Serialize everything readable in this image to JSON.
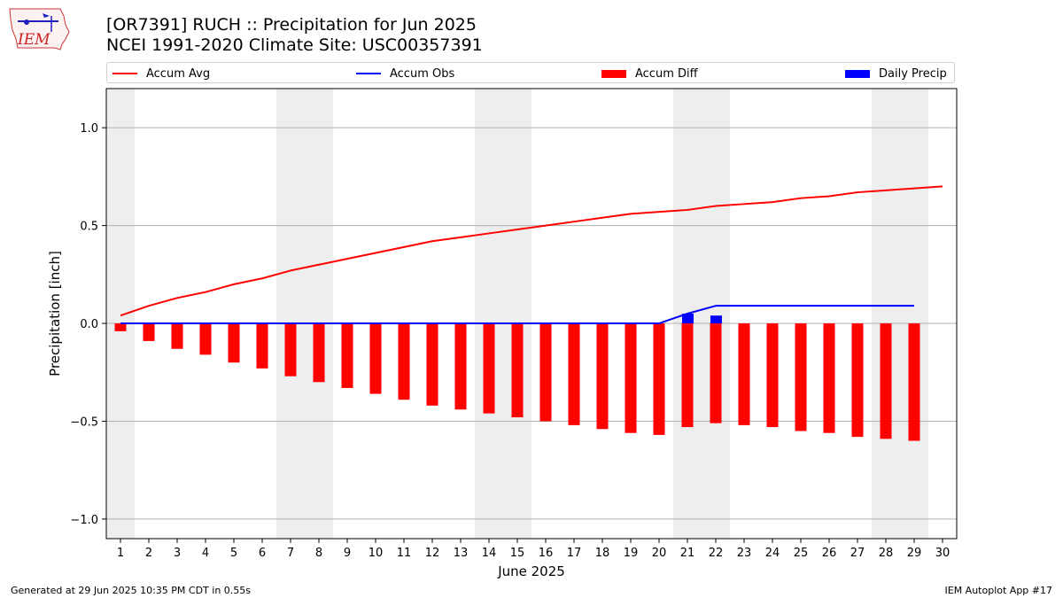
{
  "header": {
    "logo_text": "IEM",
    "title_line1": "[OR7391] RUCH :: Precipitation for Jun 2025",
    "title_line2": "NCEI 1991-2020 Climate Site: USC00357391"
  },
  "legend": {
    "accum_avg": "Accum Avg",
    "accum_obs": "Accum Obs",
    "accum_diff": "Accum Diff",
    "daily_precip": "Daily Precip"
  },
  "colors": {
    "accum_avg": "#ff0000",
    "accum_obs": "#0000ff",
    "accum_diff": "#ff0000",
    "daily_precip": "#0000ff",
    "weekend_shade": "#eeeeee",
    "grid": "#b0b0b0"
  },
  "footer": {
    "left": "Generated at 29 Jun 2025 10:35 PM CDT in 0.55s",
    "right": "IEM Autoplot App #17"
  },
  "chart_data": {
    "type": "bar",
    "xlabel": "June 2025",
    "ylabel": "Precipitation [inch]",
    "ylim": [
      -1.1,
      1.2
    ],
    "yticks": [
      -1.0,
      -0.5,
      0.0,
      0.5,
      1.0
    ],
    "ytick_labels": [
      "−1.0",
      "−0.5",
      "0.0",
      "0.5",
      "1.0"
    ],
    "xlim": [
      0.5,
      30.5
    ],
    "x": [
      1,
      2,
      3,
      4,
      5,
      6,
      7,
      8,
      9,
      10,
      11,
      12,
      13,
      14,
      15,
      16,
      17,
      18,
      19,
      20,
      21,
      22,
      23,
      24,
      25,
      26,
      27,
      28,
      29,
      30
    ],
    "grid": "horizontal",
    "weekend_shading": [
      [
        0.5,
        1.5
      ],
      [
        6.5,
        8.5
      ],
      [
        13.5,
        15.5
      ],
      [
        20.5,
        22.5
      ],
      [
        27.5,
        29.5
      ]
    ],
    "series": [
      {
        "name": "Accum Avg",
        "kind": "line",
        "x": [
          1,
          2,
          3,
          4,
          5,
          6,
          7,
          8,
          9,
          10,
          11,
          12,
          13,
          14,
          15,
          16,
          17,
          18,
          19,
          20,
          21,
          22,
          23,
          24,
          25,
          26,
          27,
          28,
          29,
          30
        ],
        "values": [
          0.04,
          0.09,
          0.13,
          0.16,
          0.2,
          0.23,
          0.27,
          0.3,
          0.33,
          0.36,
          0.39,
          0.42,
          0.44,
          0.46,
          0.48,
          0.5,
          0.52,
          0.54,
          0.56,
          0.57,
          0.58,
          0.6,
          0.61,
          0.62,
          0.64,
          0.65,
          0.67,
          0.68,
          0.69,
          0.7
        ]
      },
      {
        "name": "Accum Obs",
        "kind": "line",
        "x": [
          1,
          2,
          3,
          4,
          5,
          6,
          7,
          8,
          9,
          10,
          11,
          12,
          13,
          14,
          15,
          16,
          17,
          18,
          19,
          20,
          21,
          22,
          23,
          24,
          25,
          26,
          27,
          28,
          29
        ],
        "values": [
          0,
          0,
          0,
          0,
          0,
          0,
          0,
          0,
          0,
          0,
          0,
          0,
          0,
          0,
          0,
          0,
          0,
          0,
          0,
          0,
          0.05,
          0.09,
          0.09,
          0.09,
          0.09,
          0.09,
          0.09,
          0.09,
          0.09
        ]
      },
      {
        "name": "Accum Diff",
        "kind": "bar",
        "x": [
          1,
          2,
          3,
          4,
          5,
          6,
          7,
          8,
          9,
          10,
          11,
          12,
          13,
          14,
          15,
          16,
          17,
          18,
          19,
          20,
          21,
          22,
          23,
          24,
          25,
          26,
          27,
          28,
          29
        ],
        "values": [
          -0.04,
          -0.09,
          -0.13,
          -0.16,
          -0.2,
          -0.23,
          -0.27,
          -0.3,
          -0.33,
          -0.36,
          -0.39,
          -0.42,
          -0.44,
          -0.46,
          -0.48,
          -0.5,
          -0.52,
          -0.54,
          -0.56,
          -0.57,
          -0.53,
          -0.51,
          -0.52,
          -0.53,
          -0.55,
          -0.56,
          -0.58,
          -0.59,
          -0.6
        ]
      },
      {
        "name": "Daily Precip",
        "kind": "bar",
        "x": [
          21,
          22
        ],
        "values": [
          0.05,
          0.04
        ]
      }
    ]
  }
}
